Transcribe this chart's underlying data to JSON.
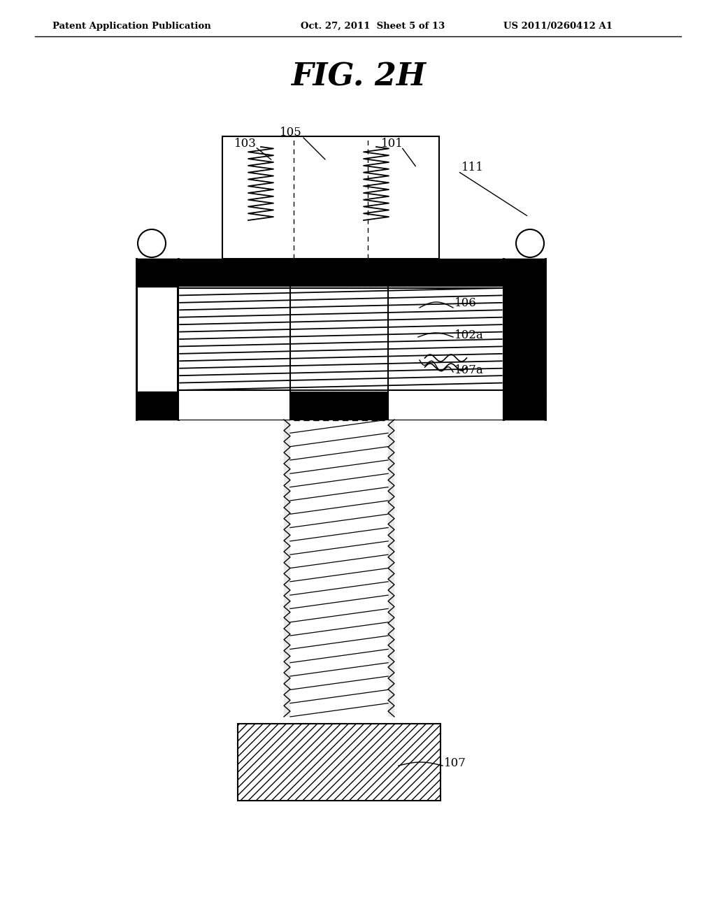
{
  "title": "FIG. 2H",
  "header_left": "Patent Application Publication",
  "header_center": "Oct. 27, 2011  Sheet 5 of 13",
  "header_right": "US 2011/0260412 A1",
  "bg_color": "#ffffff"
}
